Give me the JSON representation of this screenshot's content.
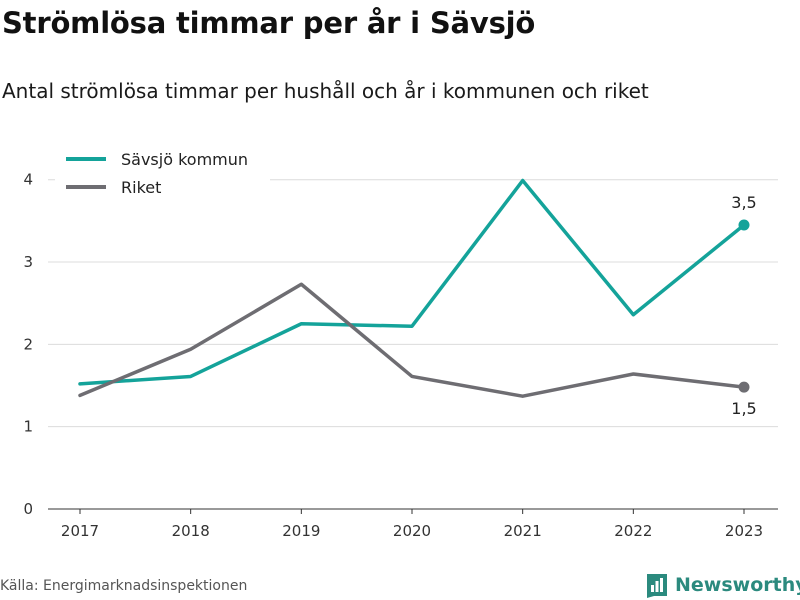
{
  "title": "Strömlösa timmar per år i Sävsjö",
  "subtitle": "Antal strömlösa timmar per hushåll och år i kommunen och riket",
  "source": "Källa: Energimarknadsinspektionen",
  "brand": {
    "name": "Newsworthy",
    "icon": "bar-chart-logo-icon",
    "color": "#2b8a7e"
  },
  "chart_data": {
    "type": "line",
    "x": [
      "2017",
      "2018",
      "2019",
      "2020",
      "2021",
      "2022",
      "2023"
    ],
    "ylim": [
      0,
      4.3
    ],
    "yticks": [
      "0",
      "1",
      "2",
      "3",
      "4"
    ],
    "grid": true,
    "legend": "top-left",
    "series": [
      {
        "name": "Sävsjö kommun",
        "color": "#14a39a",
        "values": [
          1.52,
          1.61,
          2.25,
          2.22,
          3.99,
          2.36,
          3.45
        ],
        "end_label": "3,5"
      },
      {
        "name": "Riket",
        "color": "#6e6d72",
        "values": [
          1.38,
          1.94,
          2.73,
          1.61,
          1.37,
          1.64,
          1.48
        ],
        "end_label": "1,5"
      }
    ]
  }
}
